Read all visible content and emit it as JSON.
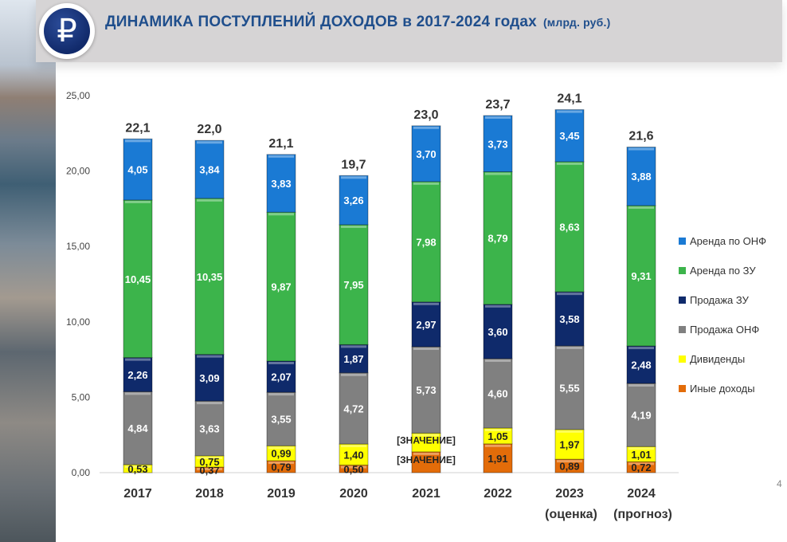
{
  "header": {
    "title": "ДИНАМИКА  ПОСТУПЛЕНИЙ  ДОХОДОВ в 2017-2024 годах",
    "unit": "(млрд. руб.)",
    "logo_symbol": "₽"
  },
  "page_number": "4",
  "chart_data": {
    "type": "bar",
    "stacked": true,
    "title": "ДИНАМИКА ПОСТУПЛЕНИЙ ДОХОДОВ в 2017-2024 годах (млрд. руб.)",
    "categories": [
      "2017",
      "2018",
      "2019",
      "2020",
      "2021",
      "2022",
      "2023",
      "2024"
    ],
    "category_sublabels": [
      "",
      "",
      "",
      "",
      "",
      "",
      "(оценка)",
      "(прогноз)"
    ],
    "ylim": [
      0,
      25
    ],
    "yticks": [
      "0,00",
      "5,00",
      "10,00",
      "15,00",
      "20,00",
      "25,00"
    ],
    "grid": false,
    "legend_position": "right",
    "totals": [
      "22,1",
      "22,0",
      "21,1",
      "19,7",
      "23,0",
      "23,7",
      "24,1",
      "21,6"
    ],
    "series": [
      {
        "name": "Иные доходы",
        "color": "#e36c09",
        "values": [
          0,
          0.37,
          0.79,
          0.5,
          1.38,
          1.91,
          0.89,
          0.72
        ],
        "labels": [
          "",
          "0,37",
          "0,79",
          "0,50",
          "[ЗНАЧЕНИЕ]",
          "1,91",
          "0,89",
          "0,72"
        ]
      },
      {
        "name": "Дивиденды",
        "color": "#ffff00",
        "values": [
          0.53,
          0.75,
          0.99,
          1.4,
          1.24,
          1.05,
          1.97,
          1.01
        ],
        "labels": [
          "0,53",
          "0,75",
          "0,99",
          "1,40",
          "[ЗНАЧЕНИЕ]",
          "1,05",
          "1,97",
          "1,01"
        ]
      },
      {
        "name": "Продажа ОНФ",
        "color": "#808080",
        "values": [
          4.84,
          3.63,
          3.55,
          4.72,
          5.73,
          4.6,
          5.55,
          4.19
        ],
        "labels": [
          "4,84",
          "3,63",
          "3,55",
          "4,72",
          "5,73",
          "4,60",
          "5,55",
          "4,19"
        ]
      },
      {
        "name": "Продажа ЗУ",
        "color": "#0f2a6b",
        "values": [
          2.26,
          3.09,
          2.07,
          1.87,
          2.97,
          3.6,
          3.58,
          2.48
        ],
        "labels": [
          "2,26",
          "3,09",
          "2,07",
          "1,87",
          "2,97",
          "3,60",
          "3,58",
          "2,48"
        ]
      },
      {
        "name": "Аренда по ЗУ",
        "color": "#3cb44b",
        "values": [
          10.45,
          10.35,
          9.87,
          7.95,
          7.98,
          8.79,
          8.63,
          9.31
        ],
        "labels": [
          "10,45",
          "10,35",
          "9,87",
          "7,95",
          "7,98",
          "8,79",
          "8,63",
          "9,31"
        ]
      },
      {
        "name": "Аренда по ОНФ",
        "color": "#1a7ad4",
        "values": [
          4.05,
          3.84,
          3.83,
          3.26,
          3.7,
          3.73,
          3.45,
          3.88
        ],
        "labels": [
          "4,05",
          "3,84",
          "3,83",
          "3,26",
          "3,70",
          "3,73",
          "3,45",
          "3,88"
        ]
      }
    ]
  }
}
